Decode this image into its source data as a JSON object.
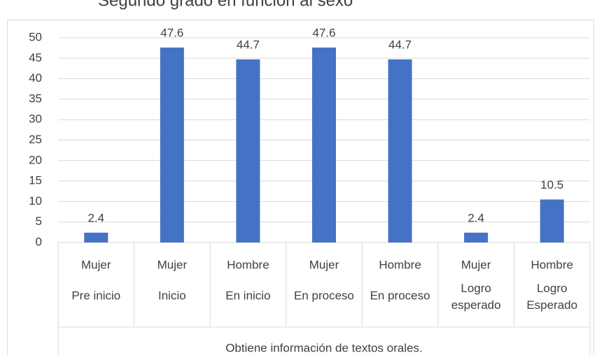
{
  "chart_data": {
    "type": "bar",
    "title": "Segundo grado en función al sexo",
    "categories": [
      {
        "sex": "Mujer",
        "level": "Pre inicio"
      },
      {
        "sex": "Mujer",
        "level": "Inicio"
      },
      {
        "sex": "Hombre",
        "level": "En inicio"
      },
      {
        "sex": "Mujer",
        "level": "En proceso"
      },
      {
        "sex": "Hombre",
        "level": "En proceso"
      },
      {
        "sex": "Mujer",
        "level": "Logro esperado"
      },
      {
        "sex": "Hombre",
        "level": "Logro Esperado"
      }
    ],
    "group_label": "Obtiene información de textos orales.",
    "values": [
      2.4,
      47.6,
      44.7,
      47.6,
      44.7,
      2.4,
      10.5
    ],
    "color": "#4472c4",
    "ylim": [
      0,
      50
    ],
    "yticks": [
      0,
      5,
      10,
      15,
      20,
      25,
      30,
      35,
      40,
      45,
      50
    ],
    "grid": true
  }
}
